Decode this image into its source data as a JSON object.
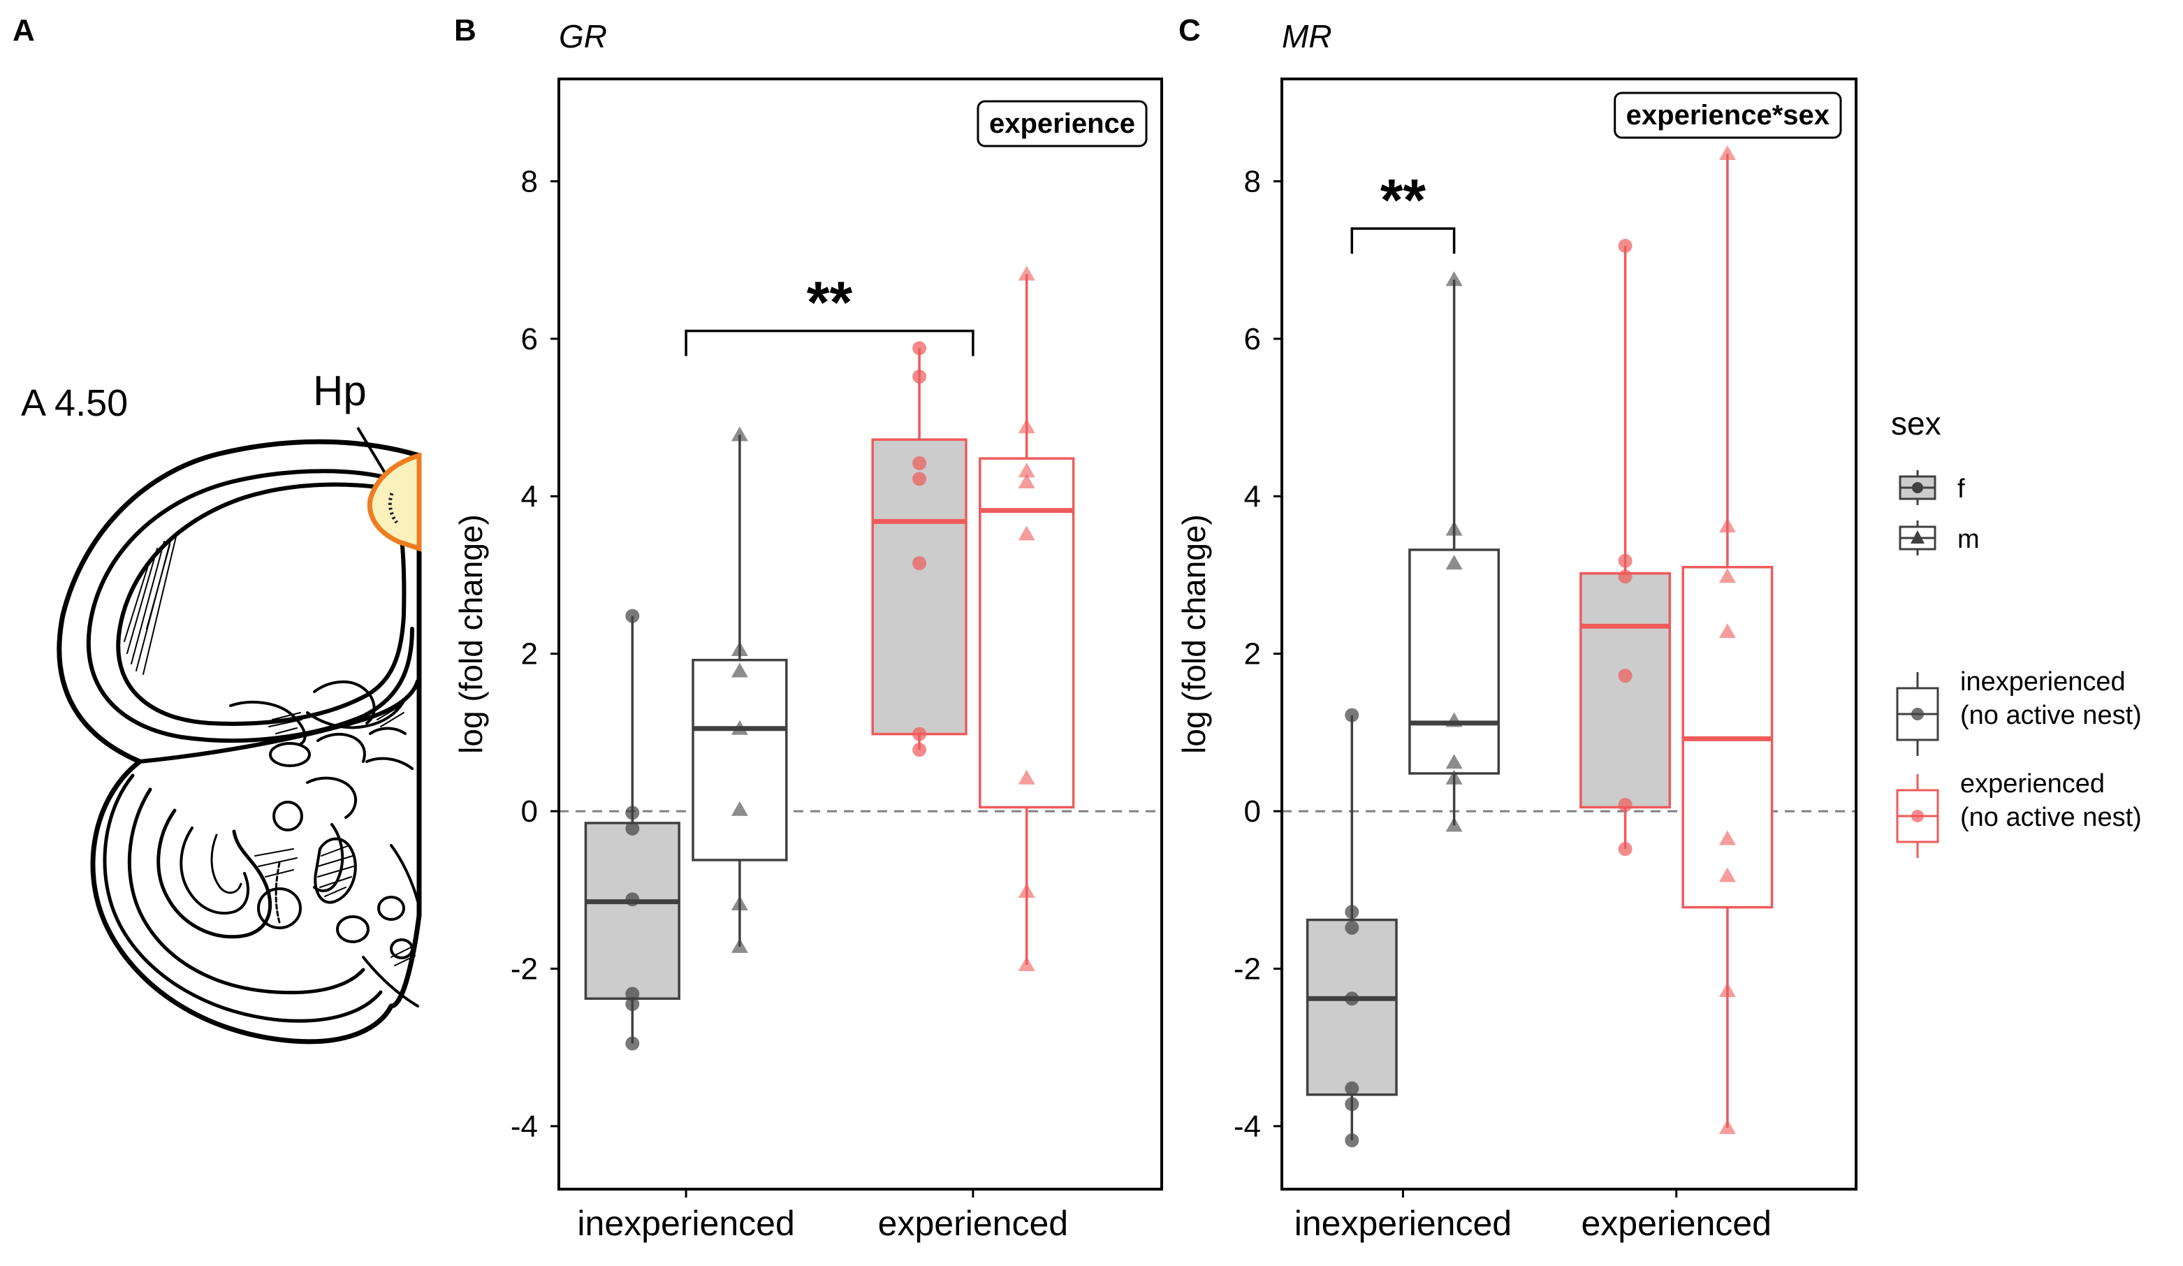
{
  "panel_a": {
    "label": "A",
    "section_label": "A 4.50",
    "region_label": "Hp",
    "colors": {
      "region_fill": "#fbf1bd",
      "region_outline": "#ee7d22"
    }
  },
  "legend": {
    "sex_title": "sex",
    "sex_items": [
      {
        "label": "f",
        "shape": "circle"
      },
      {
        "label": "m",
        "shape": "triangle"
      }
    ],
    "group_items": [
      {
        "line1": "inexperienced",
        "line2": "(no active nest)",
        "color": "#404040"
      },
      {
        "line1": "experienced",
        "line2": "(no active nest)",
        "color": "#ef5a5a"
      }
    ]
  },
  "colors": {
    "inexperienced": "#404040",
    "experienced": "#ef5a5a",
    "female_fill": "#cccccc",
    "male_fill": "#ffffff"
  },
  "chart_data": [
    {
      "panel_label": "B",
      "type": "box",
      "title": "GR",
      "ylabel": "log (fold change)",
      "xlabel": "",
      "categories": [
        "inexperienced",
        "experienced"
      ],
      "ylim": [
        -4.8,
        9.3
      ],
      "yticks": [
        -4,
        -2,
        0,
        2,
        4,
        6,
        8
      ],
      "reference_line": 0,
      "effect_label": "experience",
      "significance": {
        "label": "**",
        "from": "inexperienced",
        "to": "experienced",
        "y": 6.1
      },
      "boxes": [
        {
          "category": "inexperienced",
          "sex": "f",
          "min": -2.95,
          "q1": -2.38,
          "median": -1.15,
          "q3": -0.15,
          "max": 2.48,
          "points": [
            2.48,
            -0.02,
            -0.22,
            -1.12,
            -2.32,
            -2.45,
            -2.95
          ]
        },
        {
          "category": "inexperienced",
          "sex": "m",
          "min": -1.72,
          "q1": -0.62,
          "median": 1.05,
          "q3": 1.92,
          "max": 4.78,
          "points": [
            4.78,
            2.05,
            1.78,
            1.05,
            0.02,
            -1.18,
            -1.72
          ]
        },
        {
          "category": "experienced",
          "sex": "f",
          "min": 0.78,
          "q1": 0.98,
          "median": 3.68,
          "q3": 4.72,
          "max": 5.88,
          "points": [
            5.88,
            5.52,
            4.42,
            4.22,
            3.15,
            0.98,
            0.78
          ]
        },
        {
          "category": "experienced",
          "sex": "m",
          "min": -1.95,
          "q1": 0.05,
          "median": 3.82,
          "q3": 4.48,
          "max": 6.82,
          "points": [
            6.82,
            4.88,
            4.32,
            4.18,
            3.52,
            0.42,
            -1.02,
            -1.95
          ]
        }
      ]
    },
    {
      "panel_label": "C",
      "type": "box",
      "title": "MR",
      "ylabel": "log (fold change)",
      "xlabel": "",
      "categories": [
        "inexperienced",
        "experienced"
      ],
      "ylim": [
        -4.8,
        9.3
      ],
      "yticks": [
        -4,
        -2,
        0,
        2,
        4,
        6,
        8
      ],
      "reference_line": 0,
      "effect_label": "experience*sex",
      "significance": {
        "label": "**",
        "from": "inexperienced-f",
        "to": "inexperienced-m",
        "y": 7.4
      },
      "boxes": [
        {
          "category": "inexperienced",
          "sex": "f",
          "min": -4.18,
          "q1": -3.6,
          "median": -2.38,
          "q3": -1.38,
          "max": 1.22,
          "points": [
            1.22,
            -1.28,
            -1.48,
            -2.38,
            -3.52,
            -3.72,
            -4.18
          ]
        },
        {
          "category": "inexperienced",
          "sex": "m",
          "min": -0.18,
          "q1": 0.48,
          "median": 1.12,
          "q3": 3.32,
          "max": 6.75,
          "points": [
            6.75,
            3.58,
            3.15,
            1.15,
            0.62,
            0.42,
            -0.18
          ]
        },
        {
          "category": "experienced",
          "sex": "f",
          "min": -0.48,
          "q1": 0.05,
          "median": 2.35,
          "q3": 3.02,
          "max": 7.18,
          "points": [
            7.18,
            3.18,
            2.98,
            1.72,
            0.08,
            -0.48
          ]
        },
        {
          "category": "experienced",
          "sex": "m",
          "min": -4.02,
          "q1": -1.22,
          "median": 0.92,
          "q3": 3.1,
          "max": 8.35,
          "points": [
            8.35,
            3.62,
            2.98,
            2.28,
            -0.35,
            -0.82,
            -2.28,
            -4.02
          ]
        }
      ]
    }
  ]
}
